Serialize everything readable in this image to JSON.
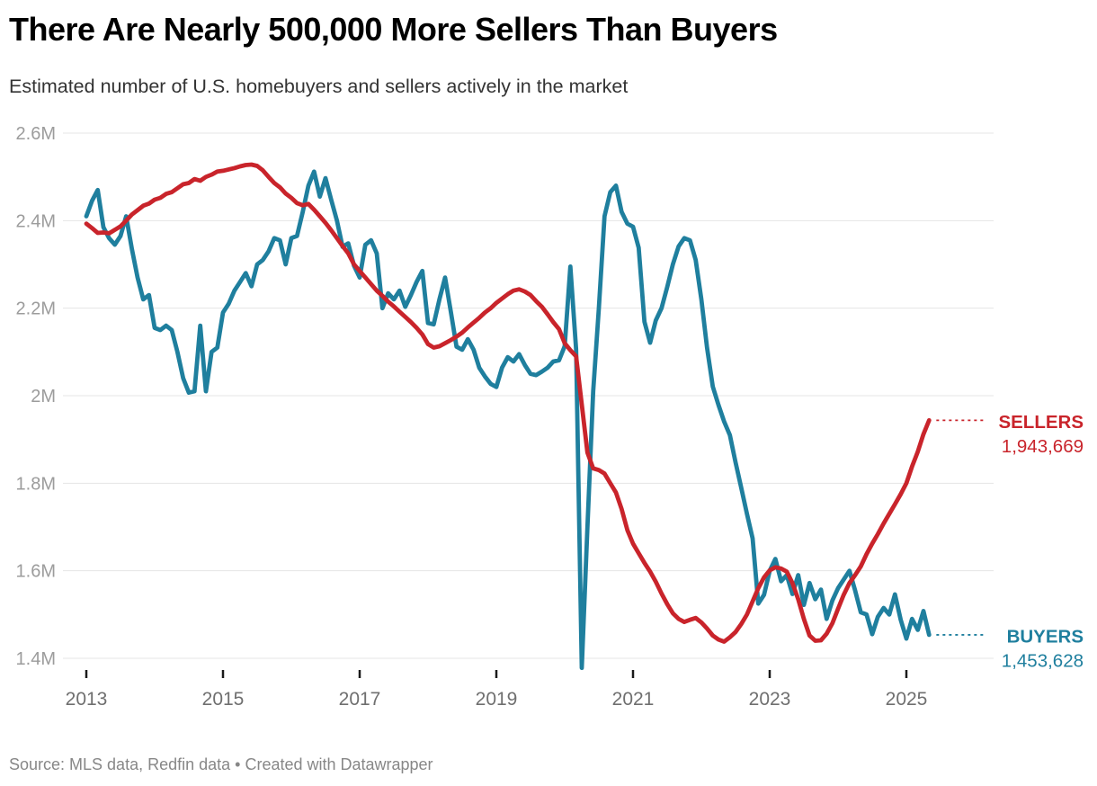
{
  "header": {
    "title": "There Are Nearly 500,000 More Sellers Than Buyers",
    "subtitle": "Estimated number of U.S. homebuyers and sellers actively in the market"
  },
  "footer": {
    "text": "Source: MLS data, Redfin data • Created with Datawrapper"
  },
  "colors": {
    "sellers": "#c9242b",
    "buyers": "#1f7f9e",
    "grid": "#e4e4e4",
    "y_axis_text": "#9c9c9c",
    "x_axis_text": "#6f6f6f",
    "tick_mark": "#1a1a1a"
  },
  "chart_data": {
    "type": "line",
    "title": "There Are Nearly 500,000 More Sellers Than Buyers",
    "subtitle": "Estimated number of U.S. homebuyers and sellers actively in the market",
    "unit": "millions of people",
    "x_unit": "month",
    "x_start_label": "2013-01",
    "x_end_label": "2025-05",
    "x_tick_years": [
      2013,
      2015,
      2017,
      2019,
      2021,
      2023,
      2025
    ],
    "x_tick_labels": [
      "2013",
      "2015",
      "2017",
      "2019",
      "2021",
      "2023",
      "2025"
    ],
    "y_ticks": [
      2.6,
      2.4,
      2.2,
      2.0,
      1.8,
      1.6,
      1.4
    ],
    "y_tick_labels": [
      "2.6M",
      "2.4M",
      "2.2M",
      "2M",
      "1.8M",
      "1.6M",
      "1.4M"
    ],
    "ylim": [
      1.37,
      2.62
    ],
    "grid": "horizontal",
    "legend_position": "end-of-line labels right",
    "series": [
      {
        "name": "BUYERS",
        "color": "#1f7f9e",
        "end_value": 1453628,
        "end_value_label": "1,453,628",
        "values_millions": [
          2.41,
          2.445,
          2.47,
          2.385,
          2.36,
          2.345,
          2.365,
          2.41,
          2.335,
          2.27,
          2.22,
          2.23,
          2.155,
          2.15,
          2.16,
          2.15,
          2.1,
          2.04,
          2.007,
          2.01,
          2.16,
          2.01,
          2.1,
          2.11,
          2.19,
          2.21,
          2.24,
          2.26,
          2.28,
          2.25,
          2.3,
          2.31,
          2.33,
          2.36,
          2.355,
          2.3,
          2.36,
          2.365,
          2.42,
          2.48,
          2.512,
          2.455,
          2.497,
          2.448,
          2.4,
          2.34,
          2.348,
          2.297,
          2.27,
          2.345,
          2.355,
          2.325,
          2.2,
          2.234,
          2.22,
          2.24,
          2.203,
          2.23,
          2.26,
          2.285,
          2.166,
          2.163,
          2.22,
          2.27,
          2.193,
          2.112,
          2.105,
          2.129,
          2.105,
          2.064,
          2.044,
          2.027,
          2.02,
          2.064,
          2.088,
          2.078,
          2.095,
          2.07,
          2.05,
          2.047,
          2.055,
          2.064,
          2.078,
          2.081,
          2.113,
          2.295,
          2.106,
          1.378,
          1.7,
          2.01,
          2.2,
          2.41,
          2.465,
          2.48,
          2.42,
          2.393,
          2.386,
          2.338,
          2.169,
          2.121,
          2.172,
          2.2,
          2.248,
          2.3,
          2.341,
          2.36,
          2.355,
          2.31,
          2.22,
          2.11,
          2.021,
          1.979,
          1.941,
          1.91,
          1.848,
          1.79,
          1.73,
          1.674,
          1.525,
          1.545,
          1.6,
          1.627,
          1.576,
          1.59,
          1.547,
          1.59,
          1.522,
          1.572,
          1.535,
          1.557,
          1.49,
          1.532,
          1.56,
          1.58,
          1.6,
          1.555,
          1.505,
          1.5,
          1.455,
          1.495,
          1.515,
          1.5,
          1.546,
          1.488,
          1.445,
          1.49,
          1.465,
          1.508,
          1.4536
        ]
      },
      {
        "name": "SELLERS",
        "color": "#c9242b",
        "end_value": 1943669,
        "end_value_label": "1,943,669",
        "values_millions": [
          2.393,
          2.383,
          2.372,
          2.373,
          2.371,
          2.379,
          2.387,
          2.4,
          2.414,
          2.424,
          2.434,
          2.439,
          2.448,
          2.452,
          2.461,
          2.465,
          2.474,
          2.483,
          2.486,
          2.495,
          2.491,
          2.5,
          2.505,
          2.512,
          2.514,
          2.517,
          2.52,
          2.524,
          2.527,
          2.528,
          2.525,
          2.515,
          2.5,
          2.486,
          2.476,
          2.462,
          2.452,
          2.44,
          2.435,
          2.438,
          2.425,
          2.41,
          2.395,
          2.378,
          2.36,
          2.342,
          2.325,
          2.3,
          2.285,
          2.27,
          2.255,
          2.24,
          2.228,
          2.215,
          2.204,
          2.192,
          2.18,
          2.168,
          2.155,
          2.14,
          2.118,
          2.11,
          2.113,
          2.12,
          2.127,
          2.135,
          2.144,
          2.156,
          2.167,
          2.178,
          2.19,
          2.2,
          2.212,
          2.222,
          2.232,
          2.24,
          2.243,
          2.238,
          2.23,
          2.216,
          2.203,
          2.186,
          2.168,
          2.152,
          2.12,
          2.104,
          2.09,
          1.98,
          1.87,
          1.834,
          1.83,
          1.822,
          1.8,
          1.779,
          1.741,
          1.693,
          1.662,
          1.64,
          1.618,
          1.598,
          1.575,
          1.548,
          1.524,
          1.503,
          1.49,
          1.483,
          1.488,
          1.492,
          1.482,
          1.468,
          1.452,
          1.443,
          1.438,
          1.448,
          1.46,
          1.478,
          1.5,
          1.53,
          1.56,
          1.585,
          1.601,
          1.608,
          1.605,
          1.598,
          1.572,
          1.535,
          1.49,
          1.452,
          1.44,
          1.441,
          1.456,
          1.48,
          1.513,
          1.545,
          1.572,
          1.59,
          1.61,
          1.638,
          1.662,
          1.684,
          1.708,
          1.73,
          1.752,
          1.775,
          1.8,
          1.838,
          1.872,
          1.912,
          1.9437
        ]
      }
    ]
  }
}
